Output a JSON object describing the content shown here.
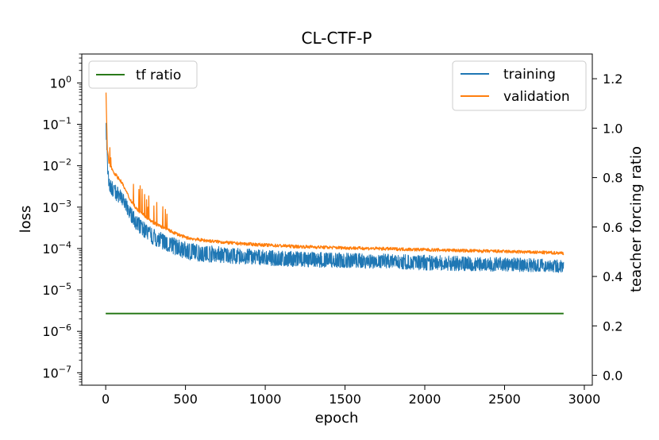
{
  "chart_data": {
    "type": "line",
    "title": "CL-CTF-P",
    "xlabel": "epoch",
    "ylabel": "loss",
    "y2label": "teacher forcing ratio",
    "xlim": [
      -150,
      3050
    ],
    "xticks": [
      0,
      500,
      1000,
      1500,
      2000,
      2500,
      3000
    ],
    "xtick_labels": [
      "0",
      "500",
      "1000",
      "1500",
      "2000",
      "2500",
      "3000"
    ],
    "y_scale": "log",
    "ylim": [
      5e-08,
      5
    ],
    "yticks": [
      -7,
      -6,
      -5,
      -4,
      -3,
      -2,
      -1,
      0
    ],
    "ytick_labels": [
      {
        "base": "10",
        "exp": "−7"
      },
      {
        "base": "10",
        "exp": "−6"
      },
      {
        "base": "10",
        "exp": "−5"
      },
      {
        "base": "10",
        "exp": "−4"
      },
      {
        "base": "10",
        "exp": "−3"
      },
      {
        "base": "10",
        "exp": "−2"
      },
      {
        "base": "10",
        "exp": "−1"
      },
      {
        "base": "10",
        "exp": "0"
      }
    ],
    "y2lim": [
      -0.04,
      1.3
    ],
    "y2ticks": [
      0.0,
      0.2,
      0.4,
      0.6,
      0.8,
      1.0,
      1.2
    ],
    "y2tick_labels": [
      "0.0",
      "0.2",
      "0.4",
      "0.6",
      "0.8",
      "1.0",
      "1.2"
    ],
    "grid": false,
    "legend_loss_placement": "top-right",
    "legend_ratio_placement": "top-left",
    "series": [
      {
        "name": "training",
        "axis": "left",
        "color": "#1f77b4",
        "x": [
          0,
          10,
          20,
          50,
          100,
          150,
          200,
          300,
          400,
          500,
          600,
          800,
          1000,
          1200,
          1500,
          1800,
          2000,
          2200,
          2500,
          2700,
          2870
        ],
        "y": [
          0.9,
          0.02,
          0.005,
          0.004,
          0.0025,
          0.0011,
          0.0006,
          0.0003,
          0.0002,
          0.000145,
          0.000125,
          0.000105,
          9.2e-05,
          8.5e-05,
          7.9e-05,
          7.4e-05,
          7e-05,
          6.6e-05,
          6.1e-05,
          5.7e-05,
          5.4e-05
        ],
        "y_min": [
          0.1,
          0.006,
          0.0025,
          0.0015,
          0.0012,
          0.0005,
          0.00025,
          0.00012,
          8e-05,
          5.5e-05,
          4.8e-05,
          4.3e-05,
          3.9e-05,
          3.6e-05,
          3.4e-05,
          3.2e-05,
          3e-05,
          2.9e-05,
          2.8e-05,
          2.7e-05,
          2.6e-05
        ]
      },
      {
        "name": "validation",
        "axis": "left",
        "color": "#ff7f0e",
        "x": [
          0,
          10,
          20,
          50,
          100,
          150,
          200,
          300,
          400,
          500,
          600,
          800,
          1000,
          1200,
          1500,
          1800,
          2000,
          2200,
          2500,
          2700,
          2870
        ],
        "y": [
          1.2,
          0.025,
          0.012,
          0.007,
          0.004,
          0.0016,
          0.00085,
          0.00042,
          0.00027,
          0.000185,
          0.00016,
          0.000135,
          0.000122,
          0.000112,
          0.000104,
          9.8e-05,
          9.4e-05,
          9e-05,
          8.5e-05,
          8.1e-05,
          7.8e-05
        ]
      },
      {
        "name": "tf ratio",
        "axis": "right",
        "color": "#2a7a1a",
        "x": [
          0,
          2870
        ],
        "y": [
          0.25,
          0.25
        ]
      }
    ]
  }
}
